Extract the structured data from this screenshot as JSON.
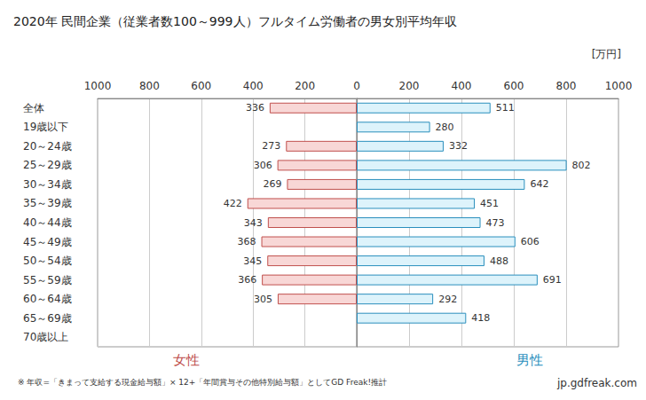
{
  "chart_data": {
    "type": "bar",
    "orientation": "horizontal",
    "title": "2020年 民間企業（従業者数100～999人）フルタイム労働者の男女別平均年収",
    "xlabel": "[万円]",
    "annotations": [
      "※ 年収=「きまって支給する現金給与額」× 12+「年間賞与その他特別給与額」としてGD Freak!推計",
      "jp.gdfreak.com"
    ],
    "categories": [
      "全体",
      "19歳以下",
      "20～24歳",
      "25～29歳",
      "30～34歳",
      "35～39歳",
      "40～44歳",
      "45～49歳",
      "50～54歳",
      "55～59歳",
      "60～64歳",
      "65～69歳",
      "70歳以上"
    ],
    "series": [
      {
        "name": "女性",
        "color": "#f8d7d6",
        "values": [
          336,
          null,
          273,
          306,
          269,
          422,
          343,
          368,
          345,
          366,
          305,
          null,
          null
        ]
      },
      {
        "name": "男性",
        "color": "#ddf3fb",
        "values": [
          511,
          280,
          332,
          802,
          642,
          451,
          473,
          606,
          488,
          691,
          292,
          418,
          null
        ]
      }
    ],
    "xlim": [
      0,
      1000
    ],
    "xticks": [
      0,
      200,
      400,
      600,
      800,
      1000
    ],
    "grid": true,
    "data_labels": true
  }
}
